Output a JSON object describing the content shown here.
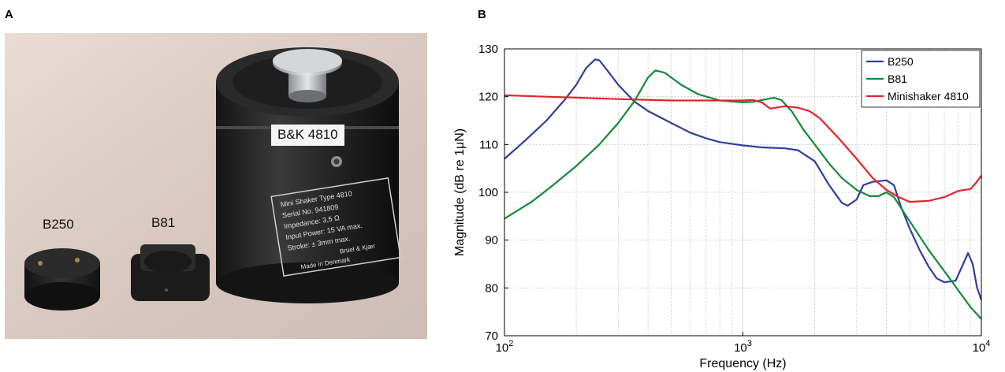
{
  "panels": {
    "a_label": "A",
    "b_label": "B"
  },
  "photo": {
    "labels": {
      "b250": "B250",
      "b81": "B81",
      "bk": "B&K 4810"
    },
    "plate_lines": [
      "Mini Shaker Type 4810",
      "Serial No. 941809",
      "Impedance: 3,5 Ω",
      "Input Power: 15 VA max.",
      "Stroke: ± 3mm max.",
      "Brüel & Kjær",
      "Made in Denmark"
    ]
  },
  "chart_data": {
    "type": "line",
    "xlabel": "Frequency (Hz)",
    "ylabel": "Magnitude (dB re 1μN)",
    "xscale": "log",
    "xlim": [
      100,
      10000
    ],
    "ylim": [
      70,
      130
    ],
    "x_ticks": [
      {
        "value": 100,
        "base": "10",
        "exp": "2"
      },
      {
        "value": 1000,
        "base": "10",
        "exp": "3"
      },
      {
        "value": 10000,
        "base": "10",
        "exp": "4"
      }
    ],
    "y_ticks": [
      70,
      80,
      90,
      100,
      110,
      120,
      130
    ],
    "grid": true,
    "legend_position": "top-right",
    "series": [
      {
        "name": "B250",
        "color": "#2f3f9a",
        "points": [
          [
            100,
            107
          ],
          [
            120,
            110.5
          ],
          [
            150,
            115
          ],
          [
            180,
            119.5
          ],
          [
            200,
            122.5
          ],
          [
            220,
            126
          ],
          [
            240,
            127.8
          ],
          [
            250,
            127.6
          ],
          [
            270,
            125.5
          ],
          [
            300,
            122.5
          ],
          [
            350,
            119
          ],
          [
            400,
            117
          ],
          [
            500,
            114.5
          ],
          [
            600,
            112.5
          ],
          [
            700,
            111.3
          ],
          [
            800,
            110.5
          ],
          [
            1000,
            109.8
          ],
          [
            1200,
            109.4
          ],
          [
            1500,
            109.2
          ],
          [
            1700,
            108.8
          ],
          [
            2000,
            106.5
          ],
          [
            2300,
            101.5
          ],
          [
            2600,
            97.8
          ],
          [
            2750,
            97.2
          ],
          [
            3000,
            98.5
          ],
          [
            3200,
            101.5
          ],
          [
            3500,
            102.2
          ],
          [
            4000,
            102.5
          ],
          [
            4300,
            101.5
          ],
          [
            4600,
            97
          ],
          [
            5000,
            92.5
          ],
          [
            5500,
            88
          ],
          [
            6000,
            84.5
          ],
          [
            6500,
            82
          ],
          [
            7000,
            81.2
          ],
          [
            7800,
            81.5
          ],
          [
            8300,
            84.5
          ],
          [
            8800,
            87.3
          ],
          [
            9200,
            85
          ],
          [
            9600,
            80
          ],
          [
            10000,
            77.5
          ]
        ]
      },
      {
        "name": "B81",
        "color": "#138a3c",
        "points": [
          [
            100,
            94.5
          ],
          [
            130,
            98
          ],
          [
            160,
            101.5
          ],
          [
            200,
            105.5
          ],
          [
            250,
            110
          ],
          [
            300,
            114.5
          ],
          [
            350,
            119
          ],
          [
            400,
            124
          ],
          [
            430,
            125.5
          ],
          [
            470,
            125
          ],
          [
            550,
            122.5
          ],
          [
            650,
            120.5
          ],
          [
            800,
            119.2
          ],
          [
            1000,
            118.8
          ],
          [
            1100,
            118.9
          ],
          [
            1200,
            119.3
          ],
          [
            1350,
            119.8
          ],
          [
            1450,
            119.3
          ],
          [
            1600,
            117
          ],
          [
            1800,
            113
          ],
          [
            2000,
            110
          ],
          [
            2300,
            106
          ],
          [
            2600,
            103
          ],
          [
            3000,
            100.5
          ],
          [
            3400,
            99.2
          ],
          [
            3700,
            99.2
          ],
          [
            4000,
            100
          ],
          [
            4300,
            99
          ],
          [
            5000,
            94
          ],
          [
            6000,
            88
          ],
          [
            7000,
            83.5
          ],
          [
            8000,
            79.5
          ],
          [
            9000,
            76
          ],
          [
            10000,
            73.5
          ]
        ]
      },
      {
        "name": "Minishaker 4810",
        "color": "#e3242b",
        "points": [
          [
            100,
            120.3
          ],
          [
            150,
            120
          ],
          [
            200,
            119.8
          ],
          [
            300,
            119.5
          ],
          [
            500,
            119.2
          ],
          [
            700,
            119.2
          ],
          [
            1000,
            119.2
          ],
          [
            1100,
            119.3
          ],
          [
            1200,
            118.8
          ],
          [
            1300,
            117.5
          ],
          [
            1500,
            118
          ],
          [
            1700,
            117.7
          ],
          [
            1900,
            117
          ],
          [
            2100,
            115.5
          ],
          [
            2500,
            111.5
          ],
          [
            3000,
            107
          ],
          [
            3500,
            103
          ],
          [
            4000,
            100.5
          ],
          [
            4500,
            99
          ],
          [
            5000,
            98
          ],
          [
            6000,
            98.2
          ],
          [
            7000,
            99
          ],
          [
            8000,
            100.3
          ],
          [
            9000,
            100.7
          ],
          [
            9500,
            102
          ],
          [
            10000,
            103.5
          ]
        ]
      }
    ]
  }
}
